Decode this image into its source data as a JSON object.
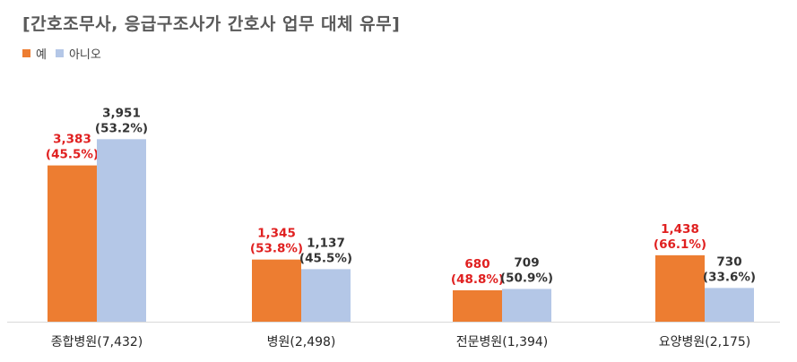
{
  "colors": {
    "yes": "#ED7D31",
    "no": "#B4C7E7",
    "yes_label": "#E02020",
    "no_label": "#333333"
  },
  "chart_data": {
    "type": "bar",
    "title": "[간호조무사, 응급구조사가 간호사 업무 대체 유무]",
    "categories": [
      "종합병원(7,432)",
      "병원(2,498)",
      "전문병원(1,394)",
      "요양병원(2,175)"
    ],
    "series": [
      {
        "name": "예",
        "values": [
          3383,
          1345,
          680,
          1438
        ],
        "labels": [
          "3,383",
          "1,345",
          "680",
          "1,438"
        ],
        "pcts": [
          "(45.5%)",
          "(53.8%)",
          "(48.8%)",
          "(66.1%)"
        ]
      },
      {
        "name": "아니오",
        "values": [
          3951,
          1137,
          709,
          730
        ],
        "labels": [
          "3,951",
          "1,137",
          "709",
          "730"
        ],
        "pcts": [
          "(53.2%)",
          "(45.5%)",
          "(50.9%)",
          "(33.6%)"
        ]
      }
    ],
    "legend_position": "top-left",
    "grid": false
  }
}
